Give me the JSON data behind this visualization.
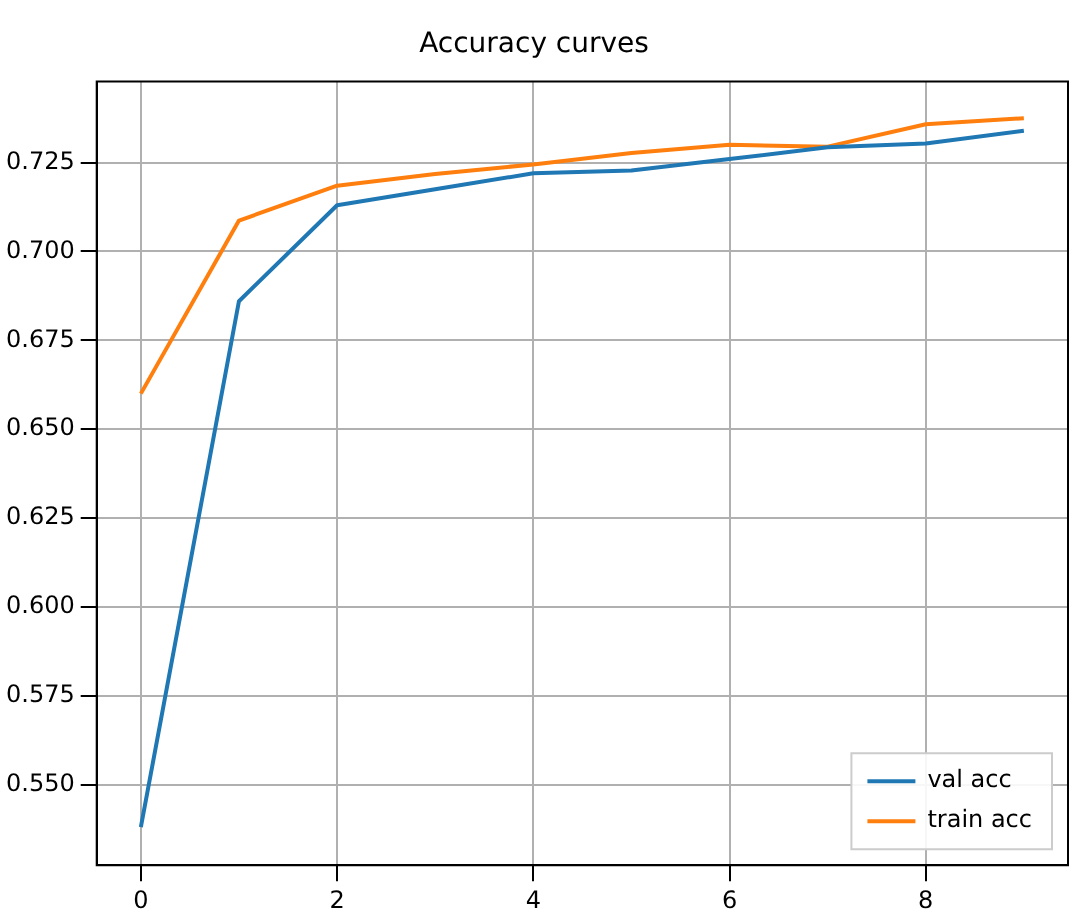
{
  "chart_data": {
    "type": "line",
    "title": "Accuracy curves",
    "x": [
      0,
      1,
      2,
      3,
      4,
      5,
      6,
      7,
      8,
      9
    ],
    "series": [
      {
        "name": "val acc",
        "color": "#1f77b4",
        "values": [
          0.538,
          0.686,
          0.713,
          0.7175,
          0.722,
          0.7228,
          0.726,
          0.7293,
          0.7304,
          0.734
        ]
      },
      {
        "name": "train acc",
        "color": "#ff7f0e",
        "values": [
          0.66,
          0.7087,
          0.7185,
          0.7218,
          0.7245,
          0.7277,
          0.73,
          0.7295,
          0.7358,
          0.7375
        ]
      }
    ],
    "xlim": [
      -0.45,
      9.45
    ],
    "xticks": [
      0,
      2,
      4,
      6,
      8
    ],
    "ylim": [
      0.5273,
      0.7478
    ],
    "yticks": [
      {
        "value": 0.55,
        "label": "0.550"
      },
      {
        "value": 0.575,
        "label": "0.575"
      },
      {
        "value": 0.6,
        "label": "0.600"
      },
      {
        "value": 0.625,
        "label": "0.625"
      },
      {
        "value": 0.65,
        "label": "0.650"
      },
      {
        "value": 0.675,
        "label": "0.675"
      },
      {
        "value": 0.7,
        "label": "0.700"
      },
      {
        "value": 0.725,
        "label": "0.725"
      }
    ],
    "grid": true,
    "legend": "bottom right",
    "marker": "none",
    "line_style": "solid"
  }
}
